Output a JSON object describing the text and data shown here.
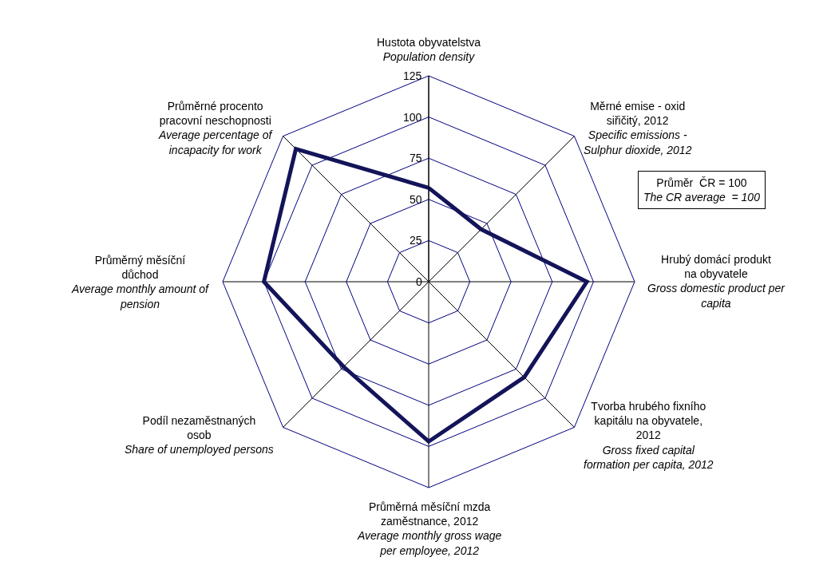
{
  "chart_data": {
    "type": "radar",
    "categories": [
      "Hustota obyvatelstva",
      "Měrné emise - oxid siřičitý, 2012",
      "Hrubý domácí produkt na obyvatele",
      "Tvorba hrubého fixního kapitálu na obyvatele, 2012",
      "Průměrná měsíční mzda zaměstnance, 2012",
      "Podíl nezaměstnaných osob",
      "Průměrný měsíční důchod",
      "Průměrné procento pracovní neschopnosti"
    ],
    "series": [
      {
        "color": "#14145a",
        "values": [
          57,
          45,
          96,
          82,
          97,
          73,
          100,
          114
        ]
      }
    ],
    "ylim": [
      0,
      125
    ],
    "yticks": [
      0,
      25,
      50,
      75,
      100,
      125
    ],
    "grid": true,
    "marker": "none",
    "line_style": "solid",
    "annotations": [
      "Population density",
      "Specific emissions - Sulphur dioxide, 2012",
      "Gross domestic product per capita",
      "Gross fixed capital formation per capita, 2012",
      "Average monthly gross wage per employee, 2012",
      "Share of unemployed persons",
      "Average monthly amount of pension",
      "Average percentage of incapacity for work",
      "Průměr  ČR = 100",
      "The CR average  = 100"
    ]
  }
}
